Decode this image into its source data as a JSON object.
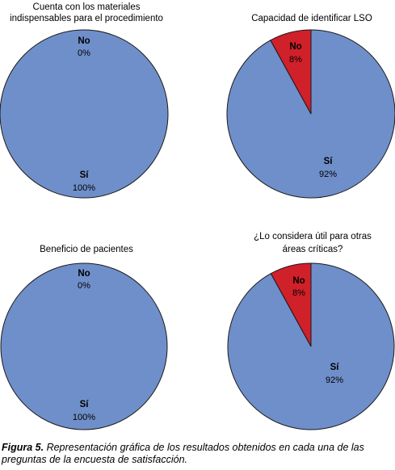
{
  "chart_data": [
    {
      "type": "pie",
      "title_lines": [
        "Cuenta con los materiales",
        "indispensables para el procedimiento"
      ],
      "slices": [
        {
          "label": "No",
          "value": 0,
          "value_text": "0%"
        },
        {
          "label": "Sí",
          "value": 100,
          "value_text": "100%"
        }
      ]
    },
    {
      "type": "pie",
      "title_lines": [
        "Capacidad de identificar LSO"
      ],
      "slices": [
        {
          "label": "No",
          "value": 8,
          "value_text": "8%"
        },
        {
          "label": "Sí",
          "value": 92,
          "value_text": "92%"
        }
      ]
    },
    {
      "type": "pie",
      "title_lines": [
        "Beneficio de pacientes"
      ],
      "slices": [
        {
          "label": "No",
          "value": 0,
          "value_text": "0%"
        },
        {
          "label": "Sí",
          "value": 100,
          "value_text": "100%"
        }
      ]
    },
    {
      "type": "pie",
      "title_lines": [
        "¿Lo considera útil para otras",
        "áreas críticas?"
      ],
      "slices": [
        {
          "label": "No",
          "value": 8,
          "value_text": "8%"
        },
        {
          "label": "Sí",
          "value": 92,
          "value_text": "92%"
        }
      ]
    }
  ],
  "colors": {
    "si": "#6f8fca",
    "no": "#d0202a",
    "outline": "#1a1a1a"
  },
  "caption": {
    "label": "Figura 5.",
    "text": " Representación gráfica de los resultados obtenidos en cada una de las preguntas de la encuesta de satisfacción."
  }
}
